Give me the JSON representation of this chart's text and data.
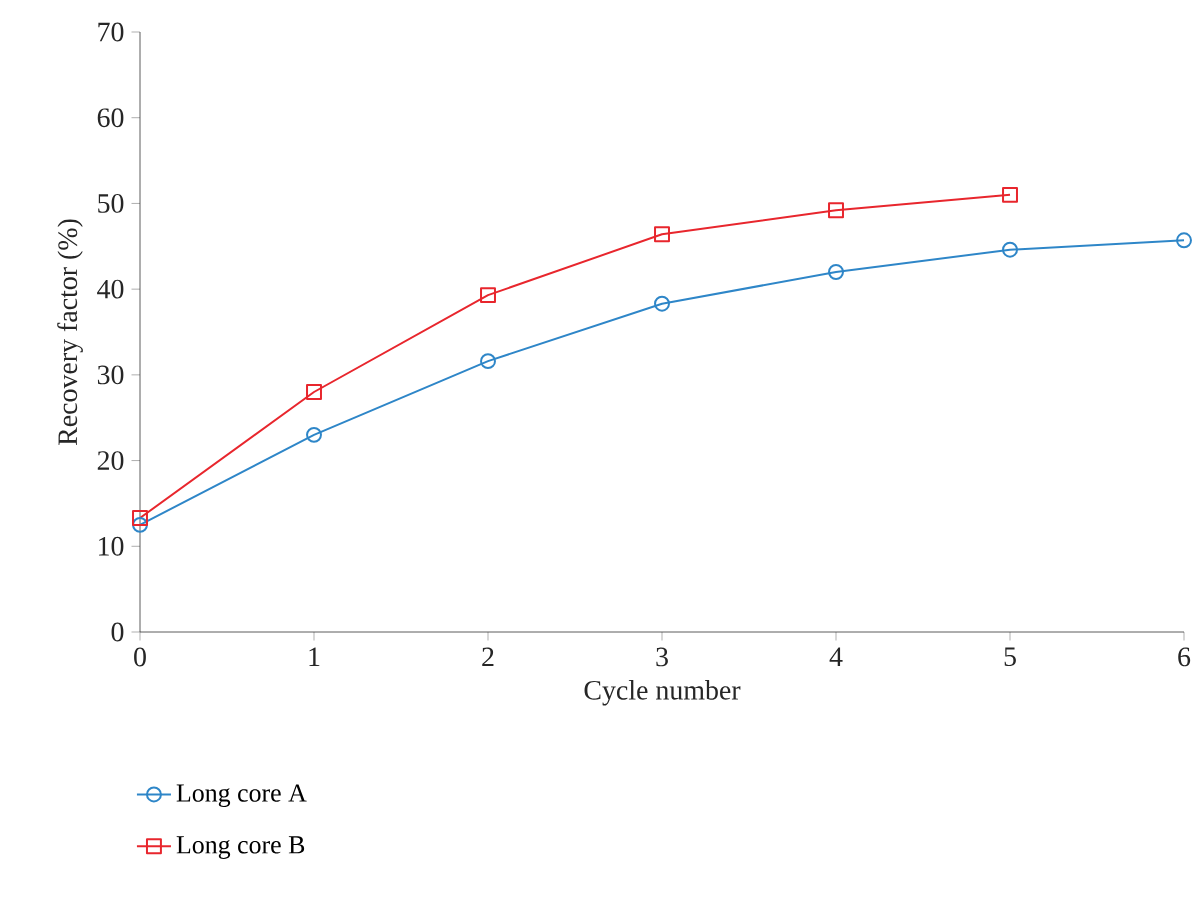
{
  "chart_data": {
    "type": "line",
    "xlabel": "Cycle number",
    "ylabel": "Recovery factor (%)",
    "x": [
      0,
      1,
      2,
      3,
      4,
      5,
      6
    ],
    "series": [
      {
        "name": "Long core A",
        "color": "#2e86c8",
        "marker": "circle",
        "values": [
          12.5,
          23,
          31.6,
          38.3,
          42,
          44.6,
          45.7
        ]
      },
      {
        "name": "Long core B",
        "color": "#e8262d",
        "marker": "square",
        "values": [
          13.3,
          28,
          39.3,
          46.4,
          49.2,
          51,
          null
        ]
      }
    ],
    "xlim": [
      0,
      6
    ],
    "ylim": [
      0,
      70
    ],
    "xticks": [
      0,
      1,
      2,
      3,
      4,
      5,
      6
    ],
    "yticks": [
      0,
      10,
      20,
      30,
      40,
      50,
      60,
      70
    ],
    "grid": false,
    "legend": "bottom left",
    "line_style": "solid"
  }
}
